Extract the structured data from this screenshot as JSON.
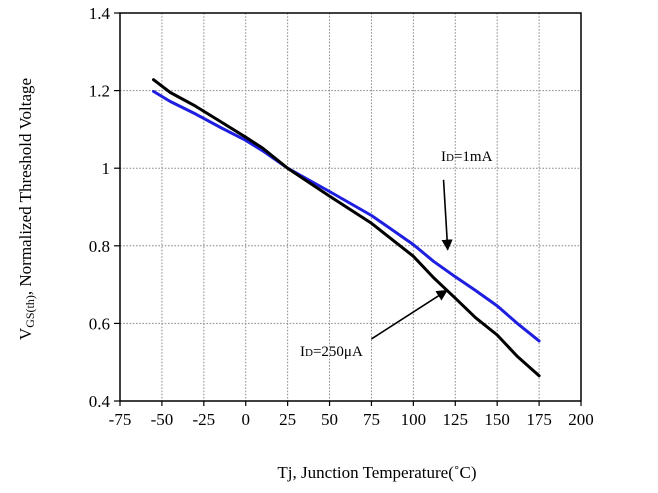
{
  "chart_data": {
    "type": "line",
    "title": "",
    "xlabel": "Tj, Junction Temperature(˚C)",
    "ylabel": {
      "main": "V",
      "sub": "GS(th)",
      "suffix": ", Normalized Threshold Voltage"
    },
    "xlim": [
      -75,
      200
    ],
    "ylim": [
      0.4,
      1.4
    ],
    "xticks": [
      -75,
      -50,
      -25,
      0,
      25,
      50,
      75,
      100,
      125,
      150,
      175,
      200
    ],
    "yticks": [
      0.4,
      0.6,
      0.8,
      1,
      1.2,
      1.4
    ],
    "xtick_labels": [
      "-75",
      "-50",
      "-25",
      "0",
      "25",
      "50",
      "75",
      "100",
      "125",
      "150",
      "175",
      "200"
    ],
    "ytick_labels": [
      "0.4",
      "0.6",
      "0.8",
      "1",
      "1.2",
      "1.4"
    ],
    "grid": true,
    "series": [
      {
        "name": "Iᴅ=1mA",
        "color": "#1e1ee0",
        "x": [
          -55,
          -45,
          -30,
          -15,
          0,
          10,
          25,
          50,
          75,
          100,
          112,
          125,
          137,
          150,
          162,
          175
        ],
        "y": [
          1.198,
          1.172,
          1.14,
          1.105,
          1.072,
          1.045,
          1.0,
          0.94,
          0.878,
          0.803,
          0.76,
          0.72,
          0.685,
          0.645,
          0.6,
          0.555
        ]
      },
      {
        "name": "Iᴅ=250μA",
        "color": "#000000",
        "x": [
          -55,
          -45,
          -30,
          -15,
          0,
          10,
          25,
          50,
          75,
          100,
          112,
          125,
          137,
          150,
          162,
          175
        ],
        "y": [
          1.228,
          1.195,
          1.16,
          1.12,
          1.08,
          1.052,
          1.0,
          0.928,
          0.858,
          0.773,
          0.718,
          0.665,
          0.615,
          0.57,
          0.515,
          0.465
        ]
      }
    ],
    "annotations": [
      {
        "label": {
          "main": "I",
          "sub": "D",
          "suffix": "=1mA"
        },
        "arrow_from": [
          118,
          0.97
        ],
        "arrow_to": [
          120.5,
          0.79
        ]
      },
      {
        "label": {
          "main": "I",
          "sub": "D",
          "suffix": "=250μA"
        },
        "arrow_from": [
          75,
          0.56
        ],
        "arrow_to": [
          120,
          0.685
        ]
      }
    ]
  }
}
